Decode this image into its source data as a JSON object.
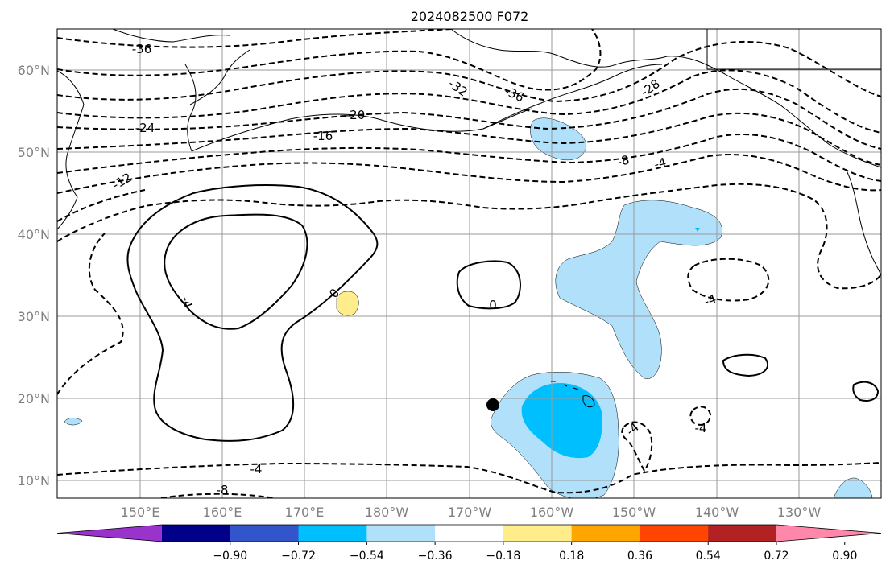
{
  "title": "2024082500 F072",
  "lat_labels": [
    "60°N",
    "50°N",
    "40°N",
    "30°N",
    "20°N",
    "10°N"
  ],
  "lon_labels": [
    "150°E",
    "160°E",
    "170°E",
    "180°W",
    "170°W",
    "160°W",
    "150°W",
    "140°W",
    "130°W"
  ],
  "contour_labels": [
    "-36",
    "-32",
    "-36",
    "-28",
    "-24",
    "-20",
    "-16",
    "-12",
    "-8",
    "-4",
    "-4",
    "-8",
    "-4",
    "-4",
    "-4",
    "0",
    "0",
    "-4"
  ],
  "colorbar": {
    "tick_labels": [
      "−0.90",
      "−0.72",
      "−0.54",
      "−0.36",
      "−0.18",
      "0.18",
      "0.36",
      "0.54",
      "0.72",
      "0.90"
    ],
    "colors": [
      "#9933cc",
      "#000088",
      "#3355cc",
      "#00bfff",
      "#b0e0fa",
      "#ffffff",
      "#ffec8b",
      "#ffa500",
      "#ff4500",
      "#b22222",
      "#ff88aa"
    ]
  },
  "marker": "filled-circle",
  "grid": true
}
